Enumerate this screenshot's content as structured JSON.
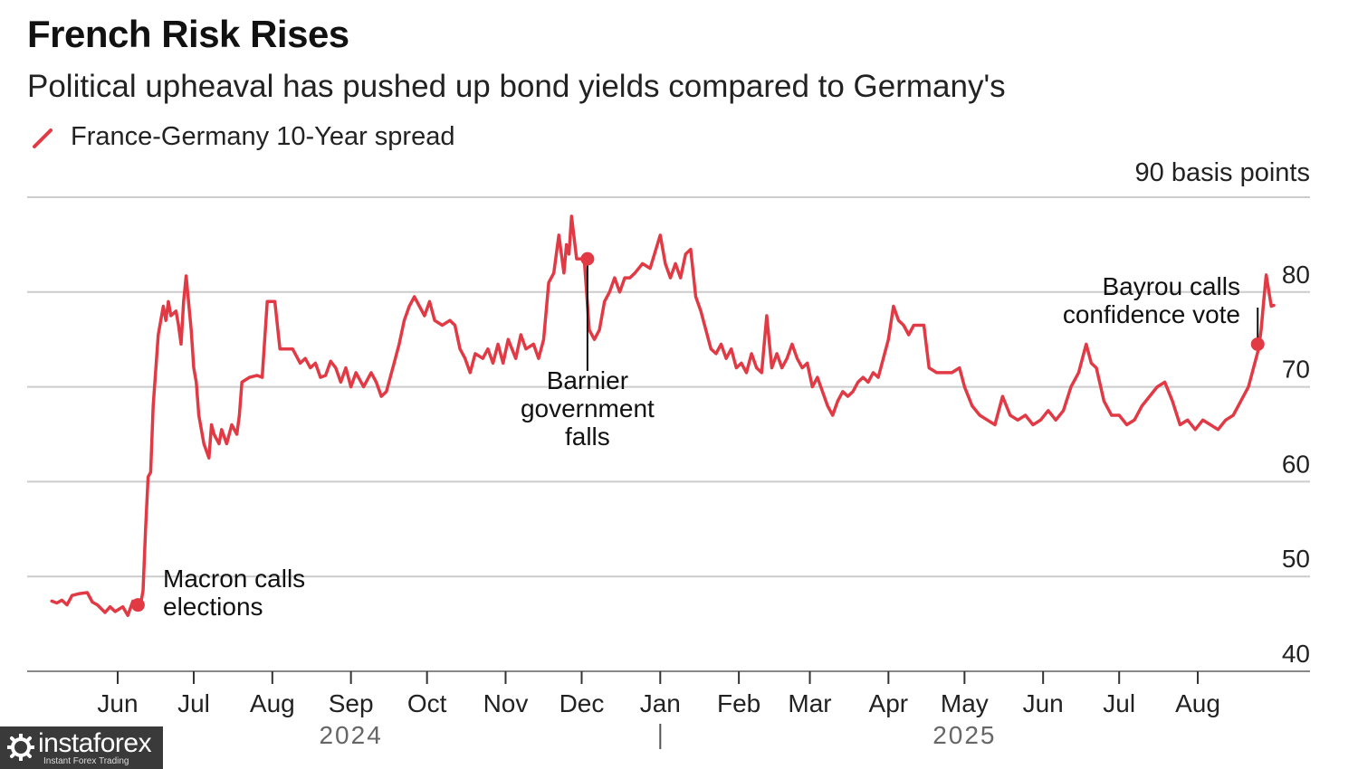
{
  "header": {
    "title": "French Risk Rises",
    "subtitle": "Political upheaval has pushed up bond yields compared to Germany's"
  },
  "legend": {
    "label": "France-Germany 10-Year spread",
    "color": "#e23a45"
  },
  "unit_label": "90 basis points",
  "watermark": {
    "name": "instaforex",
    "tagline": "Instant Forex Trading",
    "icon": "gear-logo-icon"
  },
  "chart_data": {
    "type": "line",
    "title": "French Risk Rises",
    "subtitle": "Political upheaval has pushed up bond yields compared to Germany's",
    "ylabel": "",
    "xlabel": "",
    "ylim": [
      40,
      90
    ],
    "yticks": [
      40,
      50,
      60,
      70,
      80
    ],
    "xlim": [
      "2024-05-01",
      "2025-09-01"
    ],
    "grid": true,
    "legend_position": "top-left",
    "x_ticks": [
      {
        "label": "Jun",
        "date": "2024-06-01"
      },
      {
        "label": "Jul",
        "date": "2024-07-01"
      },
      {
        "label": "Aug",
        "date": "2024-08-01"
      },
      {
        "label": "Sep",
        "date": "2024-09-01"
      },
      {
        "label": "Oct",
        "date": "2024-10-01"
      },
      {
        "label": "Nov",
        "date": "2024-11-01"
      },
      {
        "label": "Dec",
        "date": "2024-12-01"
      },
      {
        "label": "Jan",
        "date": "2025-01-01"
      },
      {
        "label": "Feb",
        "date": "2025-02-01"
      },
      {
        "label": "Mar",
        "date": "2025-03-01"
      },
      {
        "label": "Apr",
        "date": "2025-04-01"
      },
      {
        "label": "May",
        "date": "2025-05-01"
      },
      {
        "label": "Jun",
        "date": "2025-06-01"
      },
      {
        "label": "Jul",
        "date": "2025-07-01"
      },
      {
        "label": "Aug",
        "date": "2025-08-01"
      }
    ],
    "year_labels": [
      {
        "label": "2024",
        "date": "2024-09-01"
      },
      {
        "label": "2025",
        "date": "2025-05-01"
      }
    ],
    "year_divider_date": "2025-01-01",
    "series": [
      {
        "name": "France-Germany 10-Year spread",
        "color": "#e23a45",
        "points": [
          [
            "2024-05-06",
            47.4
          ],
          [
            "2024-05-08",
            47.2
          ],
          [
            "2024-05-10",
            47.5
          ],
          [
            "2024-05-12",
            47.0
          ],
          [
            "2024-05-14",
            48.0
          ],
          [
            "2024-05-17",
            48.2
          ],
          [
            "2024-05-20",
            48.3
          ],
          [
            "2024-05-22",
            47.3
          ],
          [
            "2024-05-24",
            47.0
          ],
          [
            "2024-05-27",
            46.2
          ],
          [
            "2024-05-29",
            46.8
          ],
          [
            "2024-05-31",
            46.3
          ],
          [
            "2024-06-03",
            46.8
          ],
          [
            "2024-06-05",
            45.9
          ],
          [
            "2024-06-07",
            47.4
          ],
          [
            "2024-06-09",
            46.8
          ],
          [
            "2024-06-10",
            47.0
          ],
          [
            "2024-06-11",
            48.5
          ],
          [
            "2024-06-12",
            55.0
          ],
          [
            "2024-06-13",
            60.5
          ],
          [
            "2024-06-14",
            61.0
          ],
          [
            "2024-06-15",
            68.0
          ],
          [
            "2024-06-17",
            75.5
          ],
          [
            "2024-06-18",
            77.0
          ],
          [
            "2024-06-19",
            78.5
          ],
          [
            "2024-06-20",
            77.0
          ],
          [
            "2024-06-21",
            79.0
          ],
          [
            "2024-06-22",
            77.5
          ],
          [
            "2024-06-24",
            78.0
          ],
          [
            "2024-06-25",
            76.5
          ],
          [
            "2024-06-26",
            74.5
          ],
          [
            "2024-06-27",
            79.0
          ],
          [
            "2024-06-28",
            81.7
          ],
          [
            "2024-06-30",
            76.0
          ],
          [
            "2024-07-01",
            72.0
          ],
          [
            "2024-07-02",
            70.5
          ],
          [
            "2024-07-03",
            67.0
          ],
          [
            "2024-07-05",
            64.0
          ],
          [
            "2024-07-07",
            62.5
          ],
          [
            "2024-07-08",
            66.0
          ],
          [
            "2024-07-09",
            65.0
          ],
          [
            "2024-07-11",
            64.0
          ],
          [
            "2024-07-12",
            65.5
          ],
          [
            "2024-07-14",
            64.0
          ],
          [
            "2024-07-16",
            66.0
          ],
          [
            "2024-07-18",
            65.0
          ],
          [
            "2024-07-19",
            67.0
          ],
          [
            "2024-07-20",
            70.5
          ],
          [
            "2024-07-23",
            71.0
          ],
          [
            "2024-07-26",
            71.2
          ],
          [
            "2024-07-28",
            71.0
          ],
          [
            "2024-07-30",
            79.0
          ],
          [
            "2024-08-02",
            79.0
          ],
          [
            "2024-08-04",
            74.0
          ],
          [
            "2024-08-06",
            74.0
          ],
          [
            "2024-08-09",
            74.0
          ],
          [
            "2024-08-12",
            72.5
          ],
          [
            "2024-08-14",
            73.0
          ],
          [
            "2024-08-16",
            72.0
          ],
          [
            "2024-08-18",
            72.5
          ],
          [
            "2024-08-20",
            71.0
          ],
          [
            "2024-08-22",
            71.2
          ],
          [
            "2024-08-24",
            72.7
          ],
          [
            "2024-08-26",
            72.0
          ],
          [
            "2024-08-28",
            70.5
          ],
          [
            "2024-08-30",
            72.0
          ],
          [
            "2024-09-01",
            70.0
          ],
          [
            "2024-09-03",
            71.5
          ],
          [
            "2024-09-06",
            70.0
          ],
          [
            "2024-09-09",
            71.5
          ],
          [
            "2024-09-11",
            70.5
          ],
          [
            "2024-09-13",
            69.0
          ],
          [
            "2024-09-15",
            69.5
          ],
          [
            "2024-09-18",
            72.5
          ],
          [
            "2024-09-20",
            74.5
          ],
          [
            "2024-09-22",
            77.0
          ],
          [
            "2024-09-24",
            78.5
          ],
          [
            "2024-09-26",
            79.5
          ],
          [
            "2024-09-28",
            78.5
          ],
          [
            "2024-09-30",
            77.5
          ],
          [
            "2024-10-02",
            79.0
          ],
          [
            "2024-10-04",
            77.0
          ],
          [
            "2024-10-07",
            76.5
          ],
          [
            "2024-10-10",
            77.0
          ],
          [
            "2024-10-12",
            76.5
          ],
          [
            "2024-10-14",
            74.0
          ],
          [
            "2024-10-16",
            73.0
          ],
          [
            "2024-10-18",
            71.5
          ],
          [
            "2024-10-20",
            73.5
          ],
          [
            "2024-10-23",
            73.0
          ],
          [
            "2024-10-25",
            74.0
          ],
          [
            "2024-10-27",
            72.5
          ],
          [
            "2024-10-29",
            74.5
          ],
          [
            "2024-10-31",
            72.5
          ],
          [
            "2024-11-02",
            75.0
          ],
          [
            "2024-11-05",
            73.0
          ],
          [
            "2024-11-07",
            75.5
          ],
          [
            "2024-11-09",
            74.0
          ],
          [
            "2024-11-12",
            74.5
          ],
          [
            "2024-11-14",
            73.0
          ],
          [
            "2024-11-16",
            75.0
          ],
          [
            "2024-11-18",
            81.0
          ],
          [
            "2024-11-20",
            82.0
          ],
          [
            "2024-11-22",
            86.0
          ],
          [
            "2024-11-24",
            82.0
          ],
          [
            "2024-11-25",
            85.0
          ],
          [
            "2024-11-26",
            84.0
          ],
          [
            "2024-11-27",
            88.0
          ],
          [
            "2024-11-29",
            83.5
          ],
          [
            "2024-12-01",
            83.5
          ],
          [
            "2024-12-02",
            83.5
          ],
          [
            "2024-12-04",
            76.0
          ],
          [
            "2024-12-06",
            75.0
          ],
          [
            "2024-12-08",
            76.0
          ],
          [
            "2024-12-10",
            79.0
          ],
          [
            "2024-12-12",
            80.0
          ],
          [
            "2024-12-14",
            81.5
          ],
          [
            "2024-12-16",
            80.0
          ],
          [
            "2024-12-18",
            81.5
          ],
          [
            "2024-12-20",
            81.5
          ],
          [
            "2024-12-22",
            82.0
          ],
          [
            "2024-12-25",
            83.0
          ],
          [
            "2024-12-28",
            82.5
          ],
          [
            "2025-01-01",
            86.0
          ],
          [
            "2025-01-03",
            83.0
          ],
          [
            "2025-01-05",
            81.5
          ],
          [
            "2025-01-07",
            83.0
          ],
          [
            "2025-01-09",
            81.5
          ],
          [
            "2025-01-11",
            84.0
          ],
          [
            "2025-01-13",
            84.5
          ],
          [
            "2025-01-15",
            79.5
          ],
          [
            "2025-01-17",
            78.0
          ],
          [
            "2025-01-19",
            76.0
          ],
          [
            "2025-01-21",
            74.0
          ],
          [
            "2025-01-23",
            73.5
          ],
          [
            "2025-01-25",
            74.5
          ],
          [
            "2025-01-27",
            73.0
          ],
          [
            "2025-01-29",
            74.0
          ],
          [
            "2025-01-31",
            72.0
          ],
          [
            "2025-02-02",
            72.5
          ],
          [
            "2025-02-04",
            71.5
          ],
          [
            "2025-02-06",
            73.5
          ],
          [
            "2025-02-08",
            72.0
          ],
          [
            "2025-02-10",
            71.5
          ],
          [
            "2025-02-12",
            77.5
          ],
          [
            "2025-02-14",
            72.0
          ],
          [
            "2025-02-16",
            73.5
          ],
          [
            "2025-02-18",
            72.0
          ],
          [
            "2025-02-20",
            73.0
          ],
          [
            "2025-02-22",
            74.5
          ],
          [
            "2025-02-24",
            73.0
          ],
          [
            "2025-02-26",
            72.0
          ],
          [
            "2025-02-28",
            72.5
          ],
          [
            "2025-03-02",
            70.0
          ],
          [
            "2025-03-04",
            71.0
          ],
          [
            "2025-03-06",
            69.5
          ],
          [
            "2025-03-08",
            68.0
          ],
          [
            "2025-03-10",
            67.0
          ],
          [
            "2025-03-12",
            68.5
          ],
          [
            "2025-03-14",
            69.5
          ],
          [
            "2025-03-16",
            69.0
          ],
          [
            "2025-03-18",
            69.5
          ],
          [
            "2025-03-20",
            70.5
          ],
          [
            "2025-03-22",
            71.0
          ],
          [
            "2025-03-24",
            70.5
          ],
          [
            "2025-03-26",
            71.5
          ],
          [
            "2025-03-28",
            71.0
          ],
          [
            "2025-04-01",
            75.0
          ],
          [
            "2025-04-03",
            78.5
          ],
          [
            "2025-04-05",
            77.0
          ],
          [
            "2025-04-07",
            76.5
          ],
          [
            "2025-04-09",
            75.5
          ],
          [
            "2025-04-11",
            76.5
          ],
          [
            "2025-04-13",
            76.5
          ],
          [
            "2025-04-15",
            76.5
          ],
          [
            "2025-04-17",
            72.0
          ],
          [
            "2025-04-20",
            71.5
          ],
          [
            "2025-04-23",
            71.5
          ],
          [
            "2025-04-26",
            71.5
          ],
          [
            "2025-04-29",
            72.0
          ],
          [
            "2025-05-01",
            70.0
          ],
          [
            "2025-05-04",
            68.0
          ],
          [
            "2025-05-07",
            67.0
          ],
          [
            "2025-05-10",
            66.5
          ],
          [
            "2025-05-13",
            66.0
          ],
          [
            "2025-05-16",
            69.0
          ],
          [
            "2025-05-19",
            67.0
          ],
          [
            "2025-05-22",
            66.5
          ],
          [
            "2025-05-25",
            67.0
          ],
          [
            "2025-05-28",
            66.0
          ],
          [
            "2025-05-31",
            66.5
          ],
          [
            "2025-06-03",
            67.5
          ],
          [
            "2025-06-06",
            66.5
          ],
          [
            "2025-06-09",
            67.5
          ],
          [
            "2025-06-12",
            70.0
          ],
          [
            "2025-06-15",
            71.5
          ],
          [
            "2025-06-18",
            74.5
          ],
          [
            "2025-06-20",
            72.5
          ],
          [
            "2025-06-22",
            72.0
          ],
          [
            "2025-06-25",
            68.5
          ],
          [
            "2025-06-28",
            67.0
          ],
          [
            "2025-07-01",
            67.0
          ],
          [
            "2025-07-04",
            66.0
          ],
          [
            "2025-07-07",
            66.5
          ],
          [
            "2025-07-10",
            68.0
          ],
          [
            "2025-07-13",
            69.0
          ],
          [
            "2025-07-16",
            70.0
          ],
          [
            "2025-07-19",
            70.5
          ],
          [
            "2025-07-22",
            68.5
          ],
          [
            "2025-07-25",
            66.0
          ],
          [
            "2025-07-28",
            66.5
          ],
          [
            "2025-07-31",
            65.5
          ],
          [
            "2025-08-03",
            66.5
          ],
          [
            "2025-08-06",
            66.0
          ],
          [
            "2025-08-09",
            65.5
          ],
          [
            "2025-08-12",
            66.5
          ],
          [
            "2025-08-15",
            67.0
          ],
          [
            "2025-08-18",
            68.5
          ],
          [
            "2025-08-21",
            70.0
          ],
          [
            "2025-08-24",
            73.0
          ],
          [
            "2025-08-25",
            74.0
          ],
          [
            "2025-08-26",
            76.0
          ],
          [
            "2025-08-27",
            79.0
          ],
          [
            "2025-08-28",
            81.8
          ],
          [
            "2025-08-30",
            78.5
          ],
          [
            "2025-08-31",
            78.6
          ]
        ]
      }
    ],
    "annotations": [
      {
        "text": [
          "Macron calls",
          "elections"
        ],
        "date": "2024-06-09",
        "value": 47.0
      },
      {
        "text": [
          "Barnier",
          "government",
          "falls"
        ],
        "date": "2024-12-04",
        "value": 83.5
      },
      {
        "text": [
          "Bayrou calls",
          "confidence vote"
        ],
        "date": "2025-08-25",
        "value": 74.5
      }
    ]
  }
}
